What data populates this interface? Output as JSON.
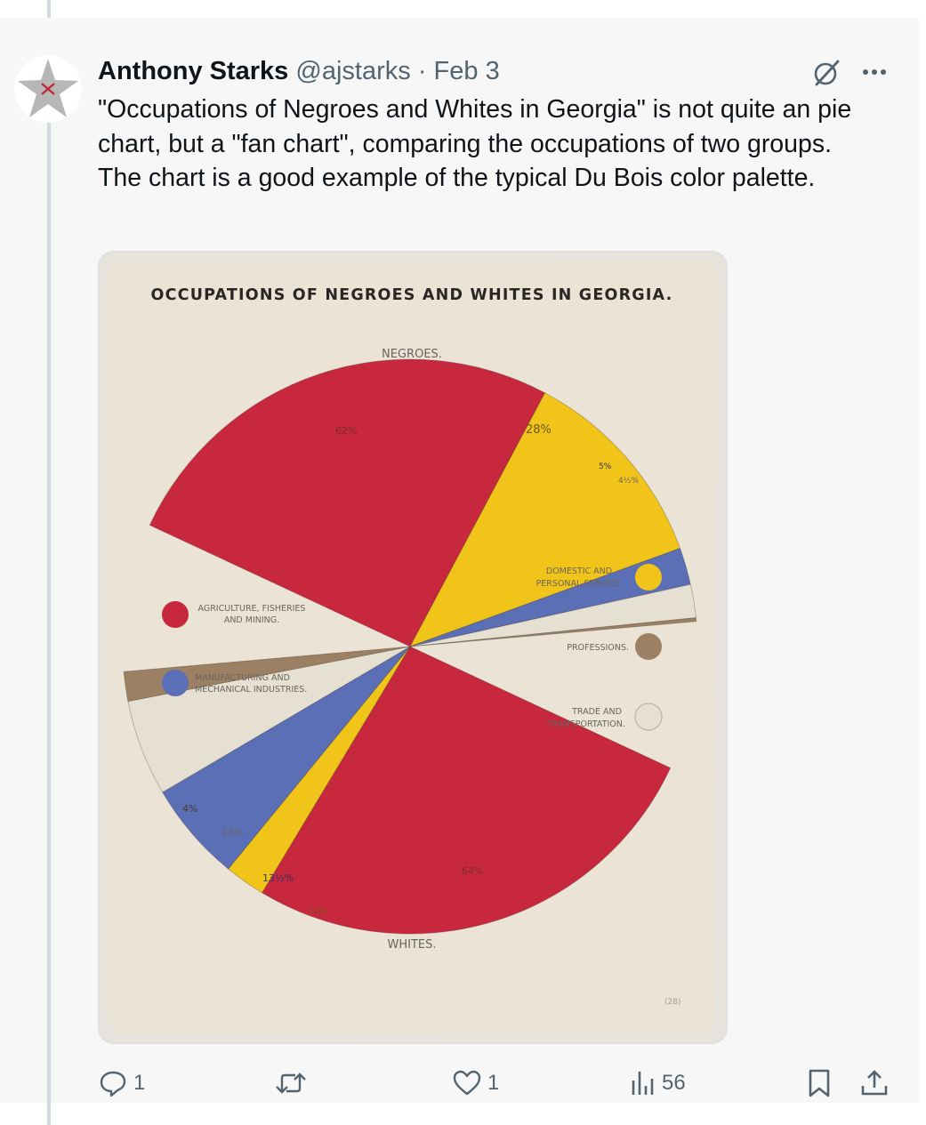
{
  "tweet": {
    "author_name": "Anthony Starks",
    "handle": "@ajstarks",
    "separator": "·",
    "date": "Feb 3",
    "text": "\"Occupations of Negroes and Whites in Georgia\" is not quite an pie chart, but a \"fan chart\", comparing the occupations of two groups. The chart is a good example of the typical Du Bois color palette."
  },
  "icons": {
    "avatar": "star-avatar-icon",
    "grok": "grok-slash-icon",
    "more": "more-dots-icon",
    "reply": "reply-bubble-icon",
    "repost": "repost-arrows-icon",
    "like": "heart-icon",
    "views": "bar-chart-icon",
    "bookmark": "bookmark-icon",
    "share": "share-upload-icon"
  },
  "metrics": {
    "replies": "1",
    "likes": "1",
    "views": "56"
  },
  "colors": {
    "agriculture": "#c8283d",
    "domestic": "#f0c419",
    "manufacturing": "#5b6fb6",
    "professions": "#9b8064",
    "trade": "#e6e0d2",
    "paper": "#ebe3d6"
  },
  "image": {
    "title": "OCCUPATIONS OF NEGROES AND WHITES IN GEORGIA.",
    "negroes_label": "NEGROES.",
    "whites_label": "WHITES.",
    "legend": {
      "agriculture": [
        "AGRICULTURE, FISHERIES",
        "AND MINING."
      ],
      "manufacturing": [
        "MANUFACTURING AND",
        "MECHANICAL INDUSTRIES."
      ],
      "domestic": [
        "DOMESTIC AND",
        "PERSONAL SERVICE."
      ],
      "professions": "PROFESSIONS.",
      "trade": [
        "TRADE AND",
        "TRANSPORTATION."
      ]
    },
    "negroes_pct": {
      "agriculture": "62%",
      "domestic": "28%",
      "manufacturing": "5%",
      "trade": "4½%"
    },
    "whites_pct": {
      "agriculture": "64%",
      "domestic": "5½%",
      "manufacturing": "13½%",
      "trade": "13%",
      "professions": "4%"
    },
    "signature": "(28)"
  },
  "chart_data": {
    "type": "pie",
    "title": "OCCUPATIONS OF NEGROES AND WHITES IN GEORGIA.",
    "series": [
      {
        "name": "NEGROES.",
        "categories": [
          "AGRICULTURE, FISHERIES AND MINING.",
          "DOMESTIC AND PERSONAL SERVICE.",
          "MANUFACTURING AND MECHANICAL INDUSTRIES.",
          "TRADE AND TRANSPORTATION.",
          "PROFESSIONS."
        ],
        "values": [
          62,
          28,
          5,
          4.5,
          0.5
        ]
      },
      {
        "name": "WHITES.",
        "categories": [
          "AGRICULTURE, FISHERIES AND MINING.",
          "DOMESTIC AND PERSONAL SERVICE.",
          "MANUFACTURING AND MECHANICAL INDUSTRIES.",
          "TRADE AND TRANSPORTATION.",
          "PROFESSIONS."
        ],
        "values": [
          64,
          5.5,
          13.5,
          13,
          4
        ]
      }
    ]
  }
}
